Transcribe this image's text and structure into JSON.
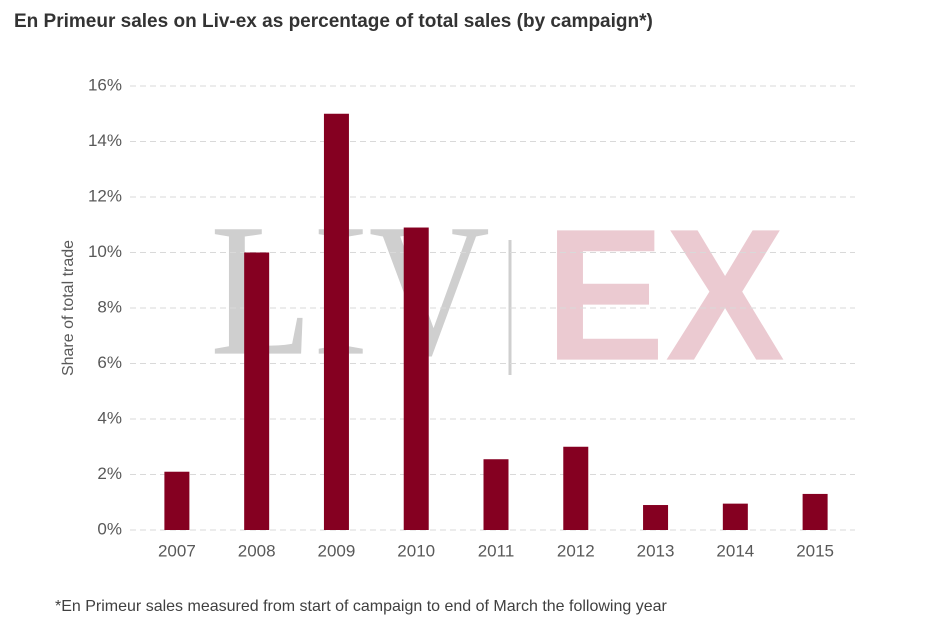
{
  "chart_data": {
    "type": "bar",
    "title": "En Primeur sales on Liv-ex as percentage of total sales (by campaign*)",
    "y_label": "Share of total trade",
    "footnote": "*En Primeur sales measured from start of campaign to end of March the following year",
    "watermark": [
      "LIV",
      "EX"
    ],
    "categories": [
      "2007",
      "2008",
      "2009",
      "2010",
      "2011",
      "2012",
      "2013",
      "2014",
      "2015"
    ],
    "values": [
      2.1,
      10.0,
      15.0,
      10.9,
      2.55,
      3.0,
      0.9,
      0.95,
      1.3
    ],
    "color": "#850021",
    "ylim": [
      0,
      16
    ],
    "yticks": [
      {
        "value": 0,
        "label": "0%"
      },
      {
        "value": 2,
        "label": "2%"
      },
      {
        "value": 4,
        "label": "4%"
      },
      {
        "value": 6,
        "label": "6%"
      },
      {
        "value": 8,
        "label": "8%"
      },
      {
        "value": 10,
        "label": "10%"
      },
      {
        "value": 12,
        "label": "12%"
      },
      {
        "value": 14,
        "label": "14%"
      },
      {
        "value": 16,
        "label": "16%"
      }
    ],
    "grid": true
  }
}
